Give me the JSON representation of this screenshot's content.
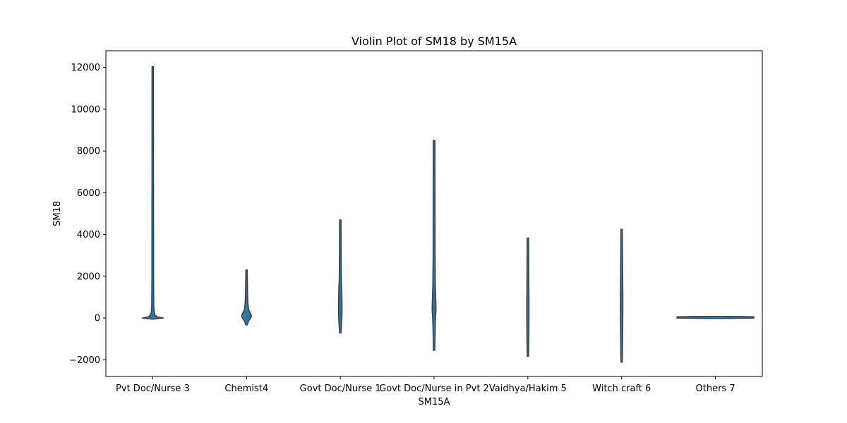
{
  "chart_data": {
    "type": "violin",
    "title": "Violin Plot of SM18 by SM15A",
    "xlabel": "SM15A",
    "ylabel": "SM18",
    "ylim": [
      -2800,
      12800
    ],
    "yticks": [
      -2000,
      0,
      2000,
      4000,
      6000,
      8000,
      10000,
      12000
    ],
    "ytick_labels": [
      "−2000",
      "0",
      "2000",
      "4000",
      "6000",
      "8000",
      "10000",
      "12000"
    ],
    "grid": false,
    "violin_color": "#3274a1",
    "edge_color": "#3f3f3f",
    "categories": [
      "Pvt Doc/Nurse 3",
      "Chemist4",
      "Govt Doc/Nurse 1",
      "Govt Doc/Nurse in Pvt 2",
      "Vaidhya/Hakim 5",
      "Witch craft 6",
      "Others 7"
    ],
    "violins": [
      {
        "min": -50,
        "max": 12050,
        "profile": [
          [
            -50,
            2
          ],
          [
            -20,
            8
          ],
          [
            0,
            15
          ],
          [
            20,
            12
          ],
          [
            60,
            6
          ],
          [
            150,
            3
          ],
          [
            300,
            2
          ],
          [
            600,
            1.5
          ],
          [
            2000,
            1.2
          ],
          [
            12050,
            1
          ]
        ]
      },
      {
        "min": -330,
        "max": 2300,
        "profile": [
          [
            -330,
            1
          ],
          [
            -150,
            3
          ],
          [
            0,
            6
          ],
          [
            100,
            7
          ],
          [
            200,
            6
          ],
          [
            400,
            3
          ],
          [
            700,
            2
          ],
          [
            1200,
            1.5
          ],
          [
            2300,
            1
          ]
        ]
      },
      {
        "min": -720,
        "max": 4700,
        "profile": [
          [
            -720,
            1
          ],
          [
            -300,
            1.8
          ],
          [
            0,
            2.2
          ],
          [
            300,
            2.5
          ],
          [
            800,
            2.5
          ],
          [
            1500,
            2
          ],
          [
            1800,
            1.5
          ],
          [
            2500,
            1.3
          ],
          [
            4700,
            1
          ]
        ]
      },
      {
        "min": -1550,
        "max": 8500,
        "profile": [
          [
            -1550,
            1
          ],
          [
            -600,
            1.5
          ],
          [
            0,
            2
          ],
          [
            400,
            2.8
          ],
          [
            800,
            2.5
          ],
          [
            1500,
            1.8
          ],
          [
            3000,
            1.4
          ],
          [
            8500,
            1.2
          ]
        ]
      },
      {
        "min": -1830,
        "max": 3830,
        "profile": [
          [
            -1830,
            1
          ],
          [
            -800,
            1.4
          ],
          [
            0,
            1.6
          ],
          [
            800,
            1.6
          ],
          [
            1500,
            1.4
          ],
          [
            3830,
            1
          ]
        ]
      },
      {
        "min": -2120,
        "max": 4250,
        "profile": [
          [
            -2120,
            1
          ],
          [
            -1000,
            1.4
          ],
          [
            0,
            1.7
          ],
          [
            1000,
            1.8
          ],
          [
            2000,
            1.5
          ],
          [
            4250,
            1
          ]
        ]
      },
      {
        "min": 0,
        "max": 60,
        "horizontal_halfwidth_frac": 0.82,
        "profile": [
          [
            0,
            0
          ],
          [
            30,
            3
          ],
          [
            60,
            0
          ]
        ]
      }
    ]
  }
}
